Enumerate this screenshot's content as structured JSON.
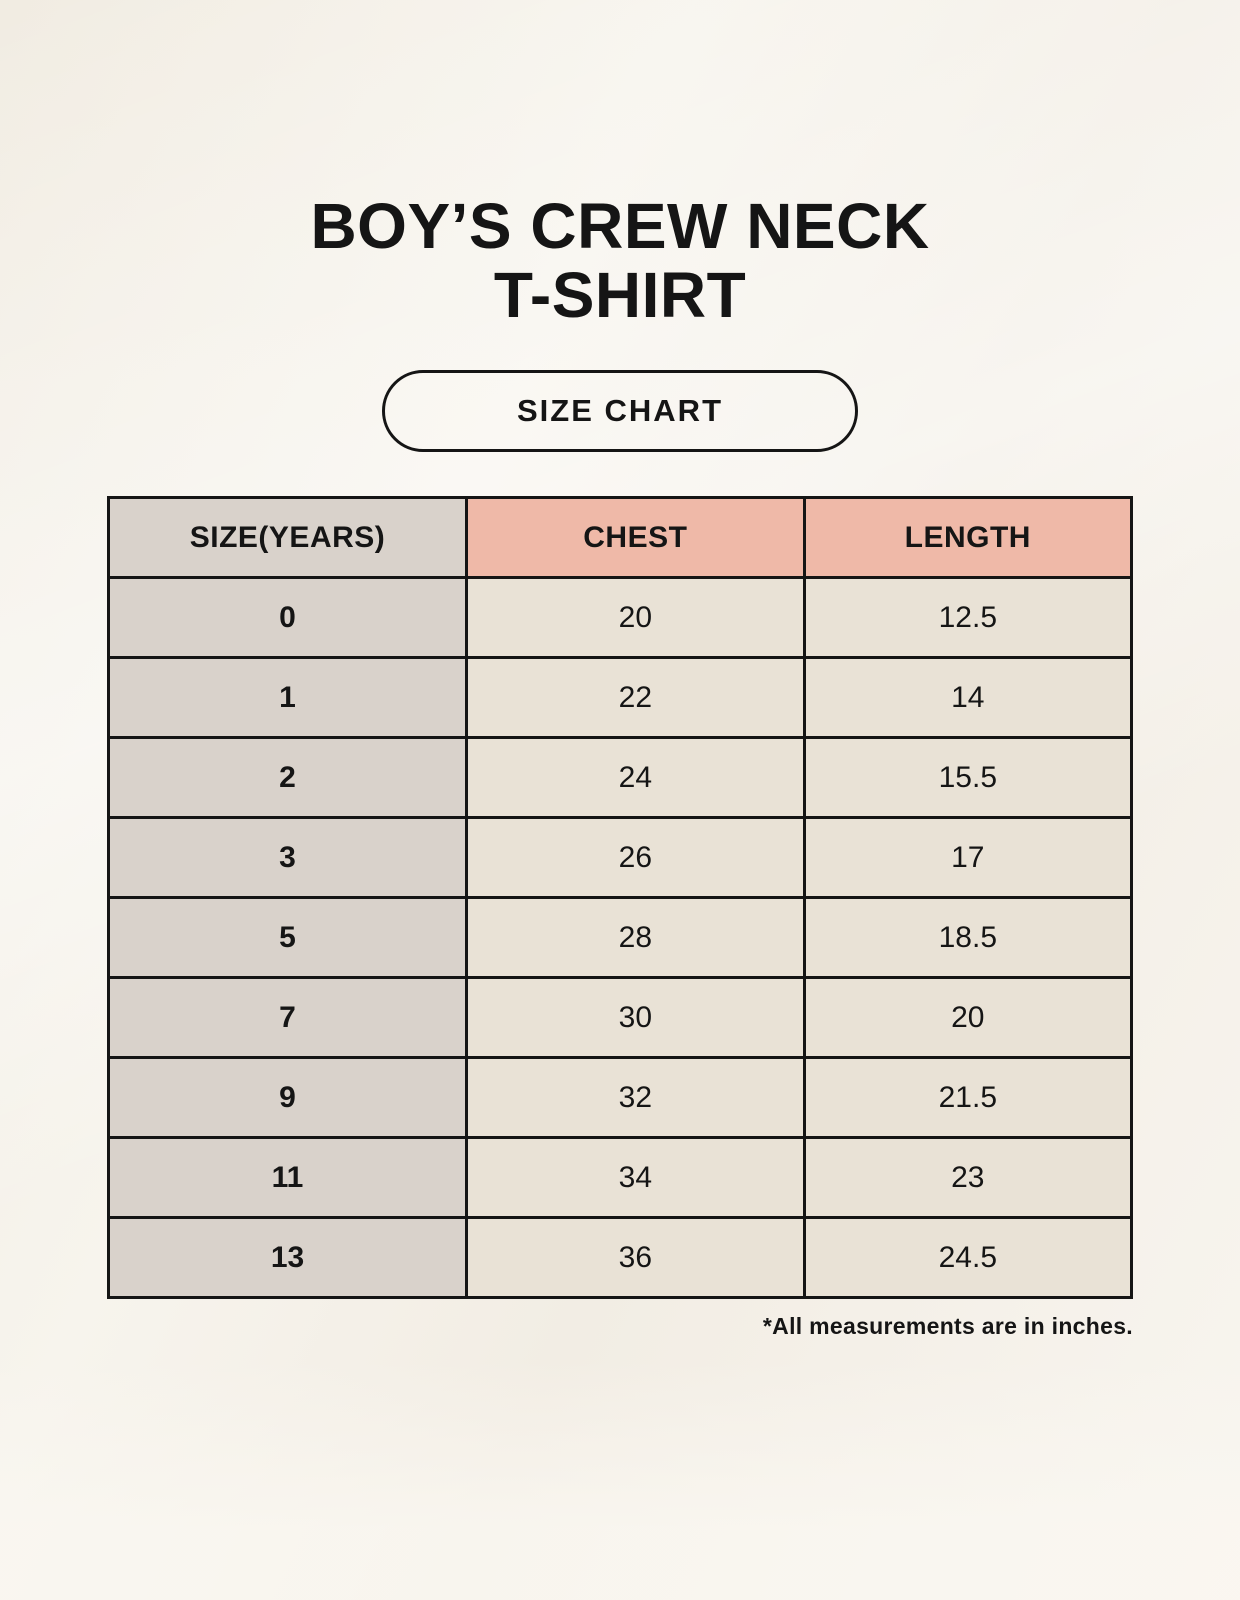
{
  "page": {
    "title_line1": "BOY’S CREW NECK",
    "title_line2": "T-SHIRT",
    "badge_label": "SIZE CHART",
    "footnote": "*All measurements are in inches."
  },
  "chart_data": {
    "type": "table",
    "title": "BOY’S CREW NECK T-SHIRT",
    "subtitle": "SIZE CHART",
    "columns": [
      "SIZE(YEARS)",
      "CHEST",
      "LENGTH"
    ],
    "rows": [
      [
        "0",
        "20",
        "12.5"
      ],
      [
        "1",
        "22",
        "14"
      ],
      [
        "2",
        "24",
        "15.5"
      ],
      [
        "3",
        "26",
        "17"
      ],
      [
        "5",
        "28",
        "18.5"
      ],
      [
        "7",
        "30",
        "20"
      ],
      [
        "9",
        "32",
        "21.5"
      ],
      [
        "11",
        "34",
        "23"
      ],
      [
        "13",
        "36",
        "24.5"
      ]
    ],
    "footnote": "*All measurements are in inches.",
    "units": "inches"
  },
  "colors": {
    "background": "#f5f1e9",
    "header_pink": "#efb9a8",
    "size_column_gray": "#d9d2cb",
    "cell_cream": "#e9e2d6",
    "border": "#151515",
    "text": "#151515"
  }
}
